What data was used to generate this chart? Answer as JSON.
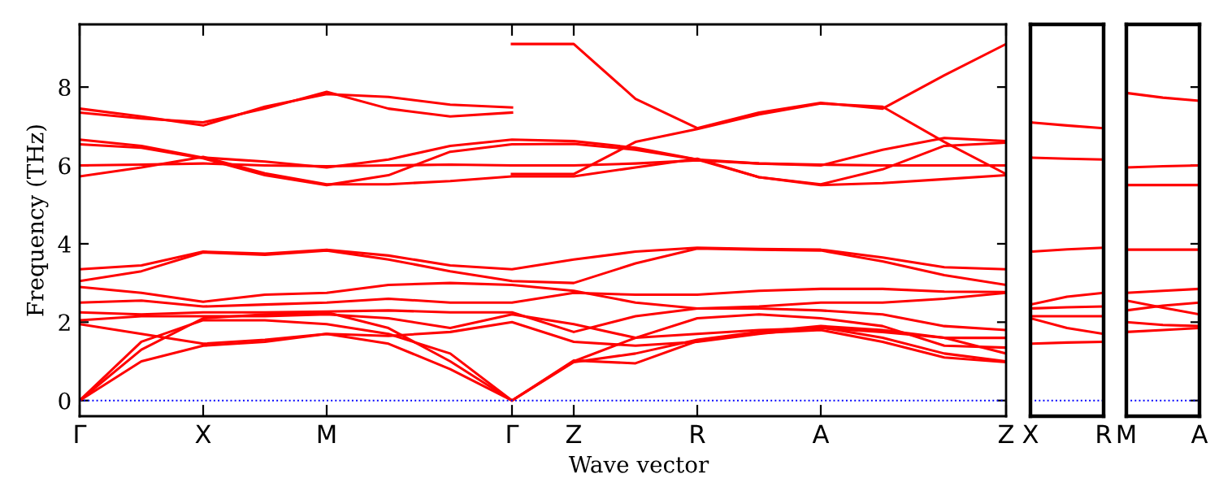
{
  "chart_data": [
    {
      "type": "line",
      "xlabel": "Wave vector",
      "ylabel": "Frequency (THz)",
      "categories": [
        "Γ",
        null,
        "X",
        null,
        "M",
        null,
        null,
        "Γ",
        "Z",
        null,
        "R",
        null,
        "A",
        null,
        null,
        "Z"
      ],
      "ylim": [
        -0.4,
        9.6
      ],
      "yticks": [
        0,
        2,
        4,
        6,
        8
      ],
      "grid": false,
      "marker": "none",
      "line_style": "solid",
      "ref_lines": [
        {
          "axis": "y",
          "value": 0,
          "color": "#0000ff",
          "line_style": "dotted"
        }
      ],
      "series": [
        {
          "color": "#ff0000",
          "values": [
            7.45,
            7.25,
            7.02,
            7.5,
            7.82,
            7.75,
            7.55,
            7.48,
            null,
            null,
            null,
            null,
            null,
            null,
            null,
            null
          ]
        },
        {
          "color": "#ff0000",
          "values": [
            7.35,
            7.2,
            7.1,
            7.45,
            7.88,
            7.45,
            7.25,
            7.35,
            null,
            null,
            null,
            null,
            null,
            null,
            null,
            null
          ]
        },
        {
          "color": "#ff0000",
          "values": [
            null,
            null,
            null,
            null,
            null,
            null,
            null,
            9.1,
            9.1,
            7.7,
            6.95,
            7.35,
            7.6,
            7.45,
            8.3,
            9.1
          ]
        },
        {
          "color": "#ff0000",
          "values": [
            6.66,
            6.5,
            6.2,
            6.1,
            5.95,
            6.15,
            6.5,
            6.66,
            6.62,
            6.45,
            6.15,
            5.7,
            5.5,
            5.55,
            5.65,
            5.75
          ]
        },
        {
          "color": "#ff0000",
          "values": [
            6.54,
            6.45,
            6.18,
            5.75,
            5.5,
            5.75,
            6.35,
            6.54,
            6.55,
            6.4,
            6.15,
            6.05,
            6.0,
            6.4,
            6.7,
            6.62
          ]
        },
        {
          "color": "#ff0000",
          "values": [
            6.0,
            6.02,
            6.05,
            6.0,
            5.98,
            6.0,
            6.02,
            6.0,
            6.0,
            6.05,
            6.13,
            6.05,
            6.02,
            6.0,
            6.0,
            6.0
          ]
        },
        {
          "color": "#ff0000",
          "values": [
            5.72,
            5.95,
            6.22,
            5.8,
            5.52,
            5.52,
            5.6,
            5.72,
            5.72,
            5.95,
            6.17,
            5.7,
            5.52,
            5.9,
            6.5,
            6.58
          ]
        },
        {
          "color": "#ff0000",
          "values": [
            null,
            null,
            null,
            null,
            null,
            null,
            null,
            5.78,
            5.78,
            6.6,
            6.93,
            7.3,
            7.58,
            7.5,
            6.6,
            5.78
          ]
        },
        {
          "color": "#ff0000",
          "values": [
            3.35,
            3.45,
            3.8,
            3.75,
            3.85,
            3.7,
            3.45,
            3.35,
            3.6,
            3.8,
            3.9,
            3.87,
            3.85,
            3.65,
            3.4,
            3.35
          ]
        },
        {
          "color": "#ff0000",
          "values": [
            3.05,
            3.3,
            3.78,
            3.72,
            3.83,
            3.6,
            3.3,
            3.05,
            3.0,
            3.5,
            3.88,
            3.85,
            3.83,
            3.55,
            3.2,
            2.95
          ]
        },
        {
          "color": "#ff0000",
          "values": [
            2.9,
            2.75,
            2.52,
            2.7,
            2.75,
            2.95,
            3.0,
            2.95,
            2.8,
            2.5,
            2.35,
            2.4,
            2.5,
            2.5,
            2.6,
            2.75
          ]
        },
        {
          "color": "#ff0000",
          "values": [
            2.5,
            2.55,
            2.4,
            2.45,
            2.5,
            2.6,
            2.5,
            2.5,
            2.75,
            2.7,
            2.7,
            2.8,
            2.85,
            2.85,
            2.78,
            2.77
          ]
        },
        {
          "color": "#ff0000",
          "values": [
            2.25,
            2.2,
            2.25,
            2.25,
            2.27,
            2.3,
            2.25,
            2.25,
            1.75,
            2.15,
            2.35,
            2.35,
            2.3,
            2.2,
            1.9,
            1.8
          ]
        },
        {
          "color": "#ff0000",
          "values": [
            2.05,
            2.15,
            2.15,
            2.15,
            2.2,
            2.1,
            1.85,
            2.2,
            1.95,
            1.6,
            1.7,
            1.8,
            1.85,
            1.75,
            1.6,
            1.6
          ]
        },
        {
          "color": "#ff0000",
          "values": [
            1.95,
            1.7,
            1.45,
            1.55,
            1.7,
            1.65,
            1.75,
            2.0,
            1.5,
            1.4,
            1.5,
            1.7,
            1.87,
            1.6,
            1.2,
            1.0
          ]
        },
        {
          "color": "#ff0000",
          "values": [
            0,
            1.5,
            2.05,
            2.05,
            1.95,
            1.7,
            1.2,
            0,
            1.0,
            1.6,
            2.1,
            2.2,
            2.1,
            1.9,
            1.4,
            1.35
          ]
        },
        {
          "color": "#ff0000",
          "values": [
            0,
            1.3,
            2.1,
            2.2,
            2.25,
            1.85,
            1.0,
            0,
            0.98,
            1.2,
            1.55,
            1.75,
            1.9,
            1.8,
            1.6,
            1.2
          ]
        },
        {
          "color": "#ff0000",
          "values": [
            0,
            1.0,
            1.4,
            1.5,
            1.7,
            1.45,
            0.8,
            0,
            1.02,
            0.95,
            1.52,
            1.72,
            1.8,
            1.5,
            1.1,
            0.98
          ]
        }
      ]
    },
    {
      "type": "line",
      "categories": [
        "X",
        null,
        "R"
      ],
      "ylim": [
        -0.4,
        9.6
      ],
      "yticks": [
        0,
        2,
        4,
        6,
        8
      ],
      "grid": false,
      "marker": "none",
      "line_style": "solid",
      "tick_labels": "x",
      "ref_lines": [
        {
          "axis": "y",
          "value": 0,
          "color": "#0000ff",
          "line_style": "dotted"
        }
      ],
      "series": [
        {
          "color": "#ff0000",
          "values": [
            7.1,
            7.02,
            6.95
          ]
        },
        {
          "color": "#ff0000",
          "values": [
            6.2,
            6.17,
            6.15
          ]
        },
        {
          "color": "#ff0000",
          "values": [
            3.8,
            3.86,
            3.9
          ]
        },
        {
          "color": "#ff0000",
          "values": [
            2.45,
            2.65,
            2.75
          ]
        },
        {
          "color": "#ff0000",
          "values": [
            2.35,
            2.38,
            2.4
          ]
        },
        {
          "color": "#ff0000",
          "values": [
            2.15,
            2.15,
            2.15
          ]
        },
        {
          "color": "#ff0000",
          "values": [
            2.1,
            1.85,
            1.7
          ]
        },
        {
          "color": "#ff0000",
          "values": [
            1.45,
            1.48,
            1.5
          ]
        }
      ]
    },
    {
      "type": "line",
      "categories": [
        "M",
        null,
        "A"
      ],
      "ylim": [
        -0.4,
        9.6
      ],
      "yticks": [
        0,
        2,
        4,
        6,
        8
      ],
      "grid": false,
      "marker": "none",
      "line_style": "solid",
      "tick_labels": "x",
      "ref_lines": [
        {
          "axis": "y",
          "value": 0,
          "color": "#0000ff",
          "line_style": "dotted"
        }
      ],
      "series": [
        {
          "color": "#ff0000",
          "values": [
            7.85,
            7.73,
            7.65
          ]
        },
        {
          "color": "#ff0000",
          "values": [
            5.95,
            5.98,
            6.0
          ]
        },
        {
          "color": "#ff0000",
          "values": [
            5.5,
            5.5,
            5.5
          ]
        },
        {
          "color": "#ff0000",
          "values": [
            3.85,
            3.85,
            3.85
          ]
        },
        {
          "color": "#ff0000",
          "values": [
            2.75,
            2.8,
            2.85
          ]
        },
        {
          "color": "#ff0000",
          "values": [
            2.55,
            2.37,
            2.2
          ]
        },
        {
          "color": "#ff0000",
          "values": [
            2.3,
            2.42,
            2.5
          ]
        },
        {
          "color": "#ff0000",
          "values": [
            2.0,
            1.93,
            1.9
          ]
        },
        {
          "color": "#ff0000",
          "values": [
            1.75,
            1.8,
            1.85
          ]
        }
      ]
    }
  ]
}
